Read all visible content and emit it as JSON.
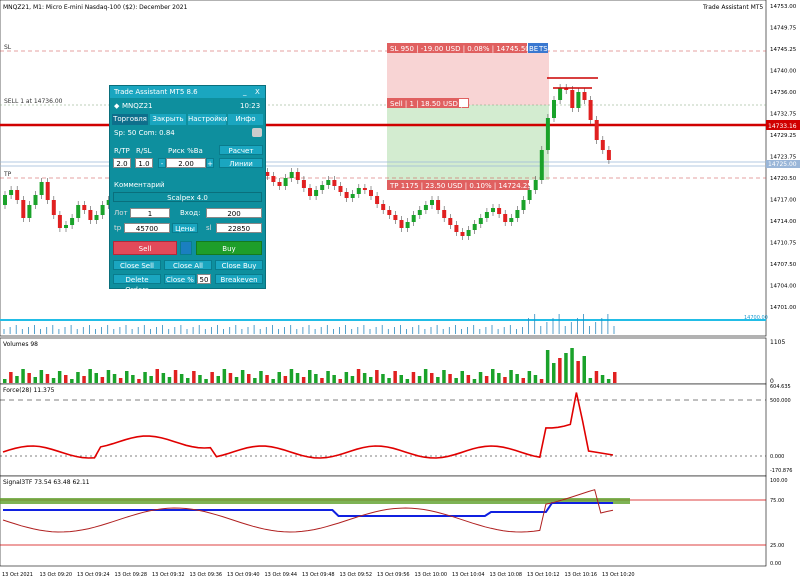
{
  "window": {
    "title": "MNQZ21, M1:  Micro E-mini Nasdaq-100 ($2): December 2021",
    "indicator_label": "Trade Assistant MT5"
  },
  "price_axis": {
    "ticks": [
      "14753.00",
      "14749.75",
      "14745.25",
      "14740.00",
      "14736.00",
      "14732.75",
      "14729.25",
      "14723.75",
      "14720.50",
      "14717.00",
      "14714.00",
      "14710.75",
      "14707.50",
      "14704.00",
      "14701.00"
    ],
    "current_price": "14733.16",
    "bid_label": "14725.00",
    "ask_label": "14726.00",
    "lower_price": "14700.00"
  },
  "levels": {
    "sl_label": "SL",
    "sell_label": "SELL 1 at 14736.00",
    "tp_label": "TP"
  },
  "overlays": {
    "sl_box": "SL 950 | -19.00 USD | 0.08% | 14745.50",
    "sl_be": "BE",
    "sl_ts": "TS",
    "entry_box": "Sell | 1 | 18.50 USD | ",
    "tp_box": "TP 1175 | 23.50 USD | 0.10% | 14724.25"
  },
  "volumes": {
    "label": "Volumes 98",
    "axis_top": "1105",
    "axis_bottom": "0"
  },
  "force": {
    "label": "Force(28) 11.375",
    "axis": [
      "604.635",
      "500.000",
      "0.000",
      "-170.876"
    ]
  },
  "signal": {
    "label": "Signal3TF 73.54 63.48 62.11",
    "axis": [
      "100.00",
      "75.00",
      "25.00",
      "0.00"
    ]
  },
  "time_axis": [
    "13 Oct 2021",
    "13 Oct 09:20",
    "13 Oct 09:24",
    "13 Oct 09:28",
    "13 Oct 09:32",
    "13 Oct 09:36",
    "13 Oct 09:40",
    "13 Oct 09:44",
    "13 Oct 09:48",
    "13 Oct 09:52",
    "13 Oct 09:56",
    "13 Oct 10:00",
    "13 Oct 10:04",
    "13 Oct 10:08",
    "13 Oct 10:12",
    "13 Oct 10:16",
    "13 Oct 10:20"
  ],
  "panel": {
    "title": "Trade Assistant MT5 8.6",
    "minimize": "_",
    "close": "X",
    "symbol": "MNQZ21",
    "time": "10:23",
    "tabs": [
      "Торговля",
      "Закрыть",
      "Настройки",
      "Инфо"
    ],
    "spread_text": "Sp: 50  Com: 0.84",
    "rtp_label": "R/TP",
    "rsl_label": "R/SL",
    "risk_label": "Риск  %Ba",
    "calc_button": "Расчет лота",
    "rtp_value": "2.0",
    "rsl_value": "1.0",
    "minus": "-",
    "risk_value": "2.00",
    "plus": "+",
    "lines_button": "Линии",
    "comment_label": "Комментарий",
    "comment_value": "Scalpex 4.0",
    "lot_label": "Лот",
    "lot_value": "1",
    "entry_label": "Вход:",
    "entry_value": "200",
    "tp_label": "tp",
    "tp_value": "45700",
    "prices_button": "Цены",
    "sl_label": "sl",
    "sl_value": "22850",
    "sell_button": "Sell",
    "buy_button": "Buy",
    "close_sell": "Close Sell",
    "close_all": "Close All",
    "close_buy": "Close Buy",
    "delete_orders": "Delete Orders",
    "close_pct": "Close %",
    "close_pct_value": "50",
    "breakeven": "Breakeven"
  }
}
